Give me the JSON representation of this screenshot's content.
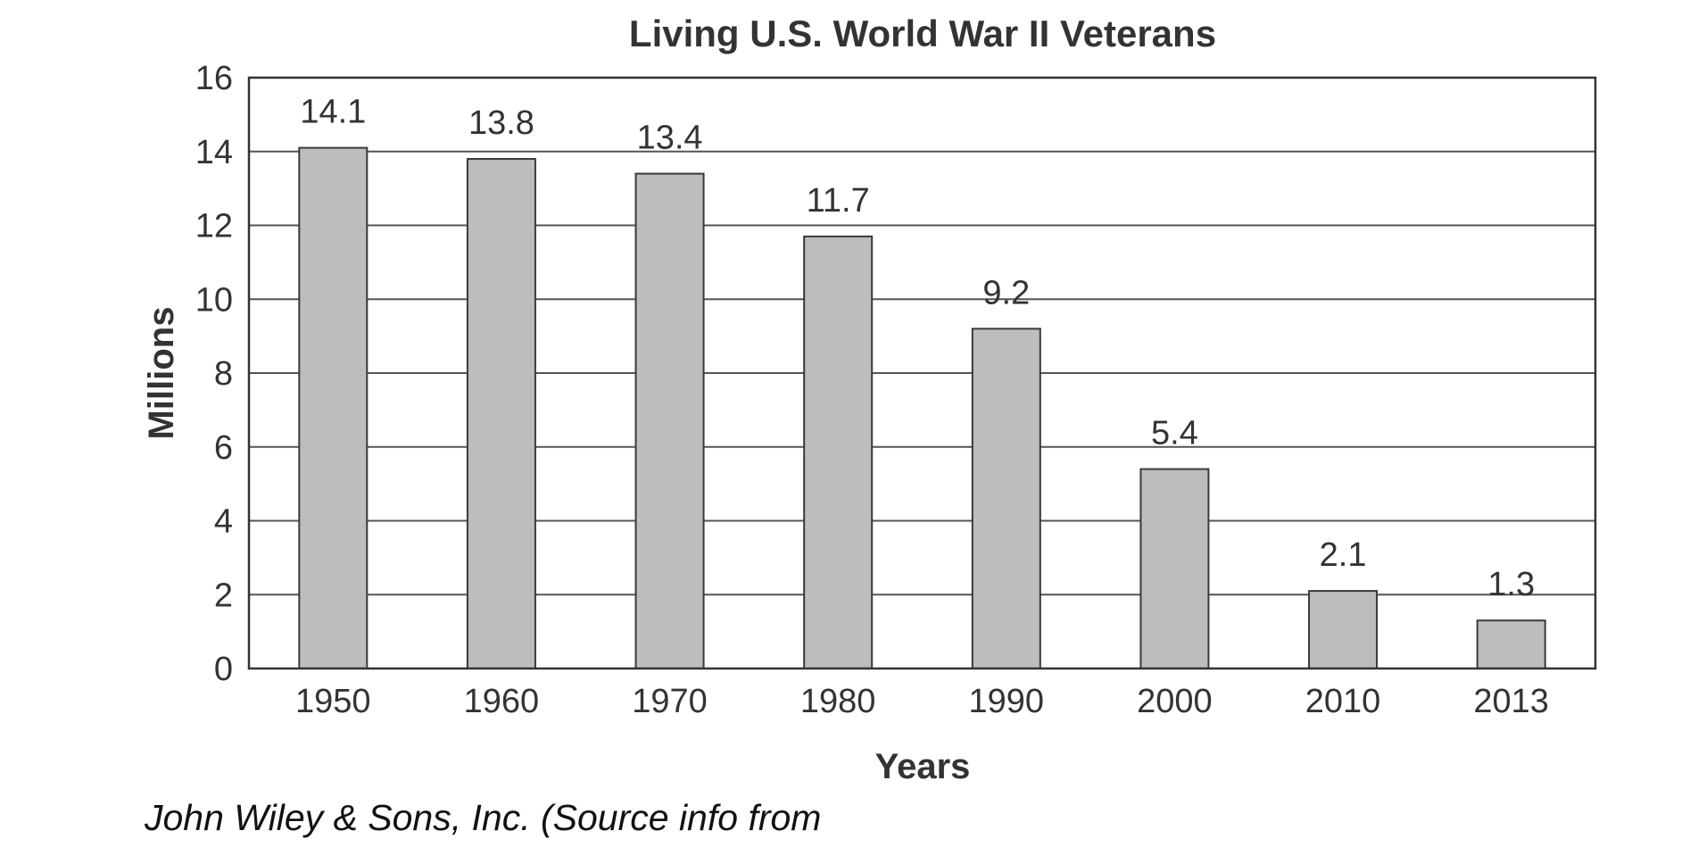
{
  "chart_data": {
    "type": "bar",
    "title": "Living U.S. World War II Veterans",
    "xlabel": "Years",
    "ylabel": "Millions",
    "categories": [
      "1950",
      "1960",
      "1970",
      "1980",
      "1990",
      "2000",
      "2010",
      "2013"
    ],
    "values": [
      14.1,
      13.8,
      13.4,
      11.7,
      9.2,
      5.4,
      2.1,
      1.3
    ],
    "data_labels": [
      "14.1",
      "13.8",
      "13.4",
      "11.7",
      "9.2",
      "5.4",
      "2.1",
      "1.3"
    ],
    "ylim": [
      0,
      16
    ],
    "yticks": [
      0,
      2,
      4,
      6,
      8,
      10,
      12,
      14,
      16
    ],
    "grid": true,
    "legend": "none",
    "bar_color": "#bdbdbf",
    "bar_outline_color": "#3a3a3a",
    "grid_color": "#555555"
  },
  "credit": "John Wiley & Sons, Inc. (Source info from"
}
